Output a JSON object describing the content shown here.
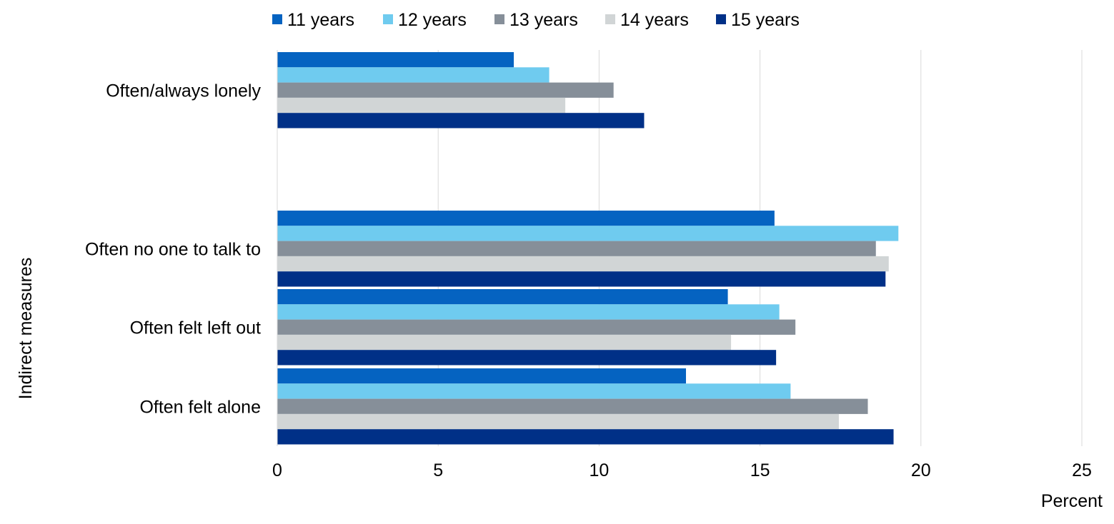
{
  "chart_data": {
    "type": "bar",
    "orientation": "horizontal",
    "categories": [
      "Often/always lonely",
      "Often no one to talk to",
      "Often felt left out",
      "Often felt alone"
    ],
    "series": [
      {
        "name": "11 years",
        "color": "#0563C1",
        "values": [
          7.35,
          15.45,
          14.0,
          12.7
        ]
      },
      {
        "name": "12 years",
        "color": "#6FCBEF",
        "values": [
          8.45,
          19.3,
          15.6,
          15.95
        ]
      },
      {
        "name": "13 years",
        "color": "#868F99",
        "values": [
          10.45,
          18.6,
          16.1,
          18.35
        ]
      },
      {
        "name": "14 years",
        "color": "#D1D5D6",
        "values": [
          8.95,
          19.0,
          14.1,
          17.45
        ]
      },
      {
        "name": "15 years",
        "color": "#003087",
        "values": [
          11.4,
          18.9,
          15.5,
          19.15
        ]
      }
    ],
    "xlabel": "Percent",
    "ylabel": "Indirect measures",
    "xlim": [
      0,
      25
    ],
    "xticks": [
      "0",
      "5",
      "10",
      "15",
      "20",
      "25"
    ],
    "grid": "vertical",
    "legend_position": "top"
  }
}
